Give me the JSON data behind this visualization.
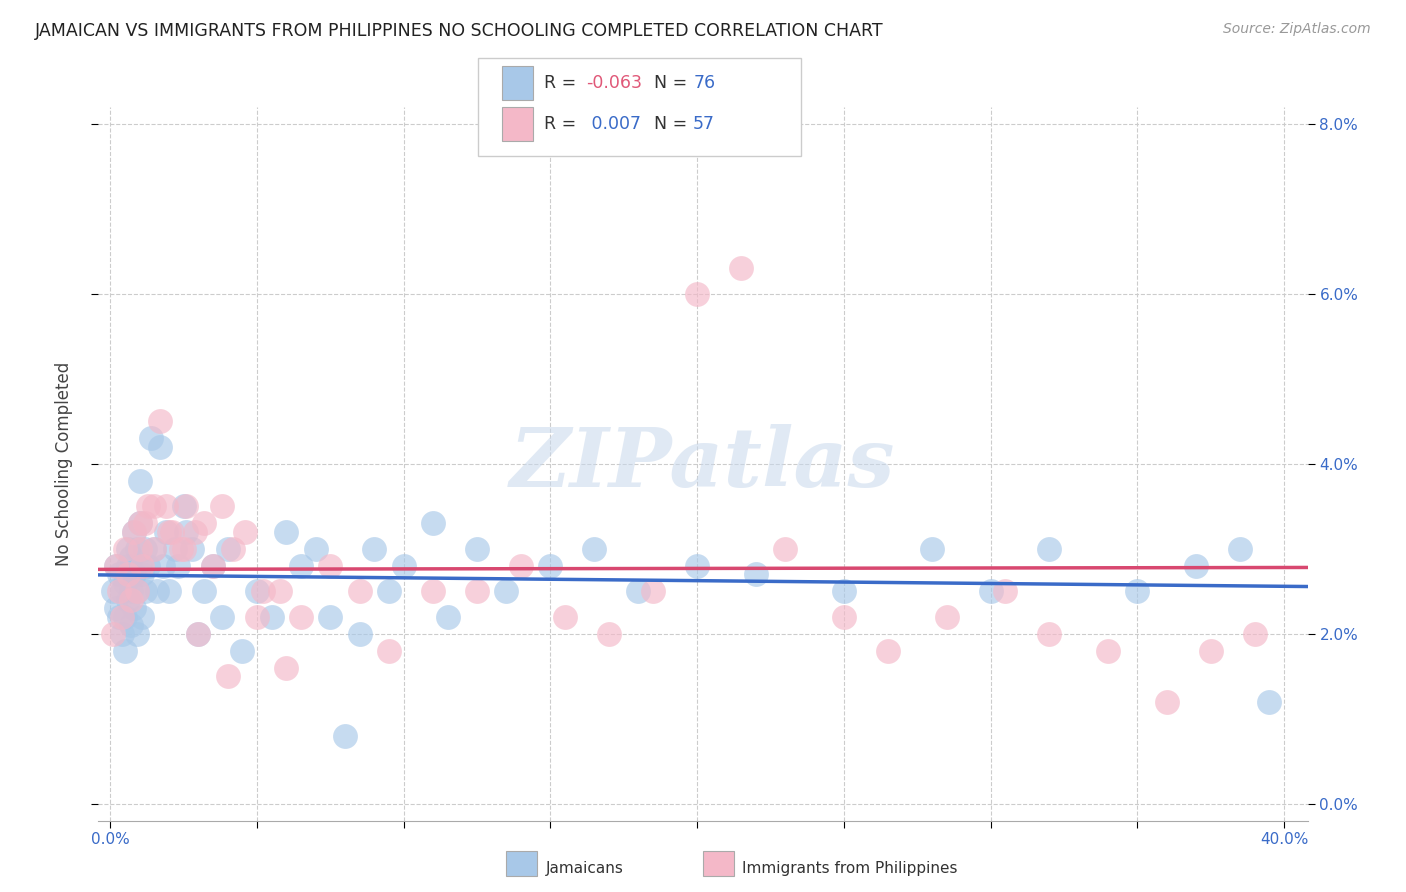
{
  "title": "JAMAICAN VS IMMIGRANTS FROM PHILIPPINES NO SCHOOLING COMPLETED CORRELATION CHART",
  "source": "Source: ZipAtlas.com",
  "ylabel_label": "No Schooling Completed",
  "xlim": [
    0.0,
    0.4
  ],
  "ylim": [
    0.0,
    0.082
  ],
  "blue_color": "#a8c8e8",
  "pink_color": "#f4b8c8",
  "blue_line_color": "#3a6bc8",
  "pink_line_color": "#d84870",
  "r_color": "#3a6bc8",
  "r_neg_color": "#e05878",
  "n_color": "#3a6bc8",
  "grid_color": "#cccccc",
  "background_color": "#ffffff",
  "watermark": "ZIPatlas",
  "blue_r": -0.063,
  "pink_r": 0.007,
  "blue_n": 76,
  "pink_n": 57,
  "blue_x": [
    0.001,
    0.002,
    0.002,
    0.003,
    0.003,
    0.004,
    0.004,
    0.005,
    0.005,
    0.005,
    0.006,
    0.006,
    0.006,
    0.007,
    0.007,
    0.007,
    0.008,
    0.008,
    0.008,
    0.009,
    0.009,
    0.009,
    0.01,
    0.01,
    0.01,
    0.011,
    0.011,
    0.012,
    0.012,
    0.013,
    0.014,
    0.015,
    0.016,
    0.017,
    0.018,
    0.019,
    0.02,
    0.022,
    0.023,
    0.025,
    0.026,
    0.028,
    0.03,
    0.032,
    0.035,
    0.038,
    0.04,
    0.045,
    0.05,
    0.055,
    0.06,
    0.065,
    0.07,
    0.075,
    0.08,
    0.085,
    0.09,
    0.095,
    0.1,
    0.11,
    0.115,
    0.125,
    0.135,
    0.15,
    0.165,
    0.18,
    0.2,
    0.22,
    0.25,
    0.28,
    0.3,
    0.32,
    0.35,
    0.37,
    0.385,
    0.395
  ],
  "blue_y": [
    0.025,
    0.023,
    0.028,
    0.022,
    0.027,
    0.02,
    0.025,
    0.018,
    0.022,
    0.026,
    0.024,
    0.028,
    0.03,
    0.021,
    0.025,
    0.029,
    0.023,
    0.027,
    0.032,
    0.02,
    0.025,
    0.03,
    0.028,
    0.033,
    0.038,
    0.022,
    0.027,
    0.025,
    0.03,
    0.028,
    0.043,
    0.03,
    0.025,
    0.042,
    0.028,
    0.032,
    0.025,
    0.03,
    0.028,
    0.035,
    0.032,
    0.03,
    0.02,
    0.025,
    0.028,
    0.022,
    0.03,
    0.018,
    0.025,
    0.022,
    0.032,
    0.028,
    0.03,
    0.022,
    0.008,
    0.02,
    0.03,
    0.025,
    0.028,
    0.033,
    0.022,
    0.03,
    0.025,
    0.028,
    0.03,
    0.025,
    0.028,
    0.027,
    0.025,
    0.03,
    0.025,
    0.03,
    0.025,
    0.028,
    0.03,
    0.012
  ],
  "pink_x": [
    0.001,
    0.002,
    0.003,
    0.004,
    0.005,
    0.006,
    0.007,
    0.008,
    0.009,
    0.01,
    0.011,
    0.012,
    0.013,
    0.015,
    0.017,
    0.019,
    0.021,
    0.024,
    0.026,
    0.029,
    0.032,
    0.035,
    0.038,
    0.042,
    0.046,
    0.052,
    0.058,
    0.065,
    0.075,
    0.085,
    0.095,
    0.11,
    0.125,
    0.14,
    0.155,
    0.17,
    0.185,
    0.2,
    0.215,
    0.23,
    0.25,
    0.265,
    0.285,
    0.305,
    0.32,
    0.34,
    0.36,
    0.375,
    0.39,
    0.01,
    0.015,
    0.02,
    0.025,
    0.03,
    0.04,
    0.05,
    0.06
  ],
  "pink_y": [
    0.02,
    0.028,
    0.025,
    0.022,
    0.03,
    0.027,
    0.024,
    0.032,
    0.025,
    0.03,
    0.028,
    0.033,
    0.035,
    0.03,
    0.045,
    0.035,
    0.032,
    0.03,
    0.035,
    0.032,
    0.033,
    0.028,
    0.035,
    0.03,
    0.032,
    0.025,
    0.025,
    0.022,
    0.028,
    0.025,
    0.018,
    0.025,
    0.025,
    0.028,
    0.022,
    0.02,
    0.025,
    0.06,
    0.063,
    0.03,
    0.022,
    0.018,
    0.022,
    0.025,
    0.02,
    0.018,
    0.012,
    0.018,
    0.02,
    0.033,
    0.035,
    0.032,
    0.03,
    0.02,
    0.015,
    0.022,
    0.016
  ],
  "xtick_positions": [
    0.0,
    0.4
  ],
  "xtick_labels": [
    "0.0%",
    "40.0%"
  ],
  "ytick_positions": [
    0.0,
    0.02,
    0.04,
    0.06,
    0.08
  ],
  "ytick_labels": [
    "0.0%",
    "2.0%",
    "4.0%",
    "6.0%",
    "8.0%"
  ]
}
